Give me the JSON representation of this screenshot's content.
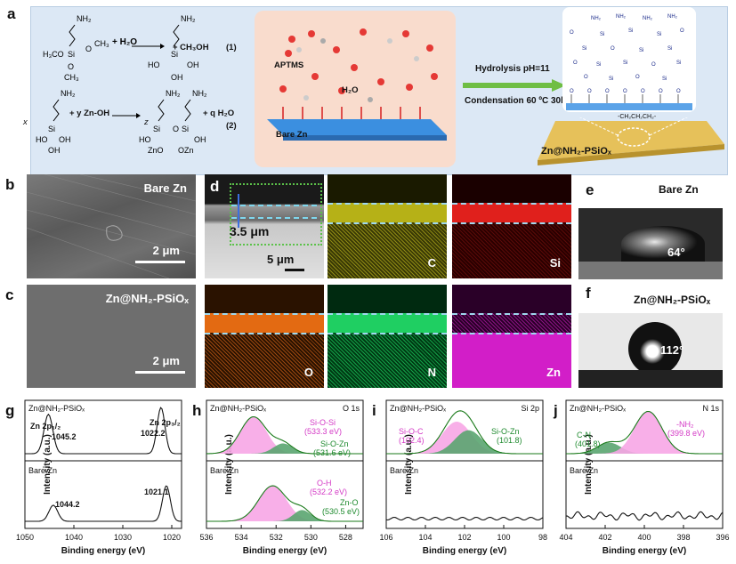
{
  "panel_a": {
    "label": "a",
    "eq1_label": "(1)",
    "eq2_label": "(2)",
    "eq1_products": "+ CH₃OH",
    "eq1_water": "+ H₂O",
    "eq2_coef_x": "x",
    "eq2_coef_y": "+ y Zn-OH",
    "eq2_coef_z": "z",
    "eq2_water": "+ q H₂O",
    "aptms": "APTMS",
    "h2o": "H₂O",
    "bare_zn": "Bare Zn",
    "arrow_top": "Hydrolysis pH=11",
    "arrow_bottom": "Condensation 60 ºC 30h",
    "chain": "-CH₂CH₂CH₂-",
    "product": "Zn@NH₂-PSiOₓ"
  },
  "panel_b": {
    "label": "b",
    "title": "Bare Zn",
    "scale": "2 μm"
  },
  "panel_c": {
    "label": "c",
    "title": "Zn@NH₂-PSiOₓ",
    "scale": "2 μm"
  },
  "panel_d": {
    "label": "d",
    "thickness": "3.5 μm",
    "scale": "5 μm",
    "maps": [
      "C",
      "Si",
      "O",
      "N",
      "Zn"
    ],
    "map_colors": {
      "C": "#d7d21c",
      "Si": "#e0201c",
      "O": "#e36a12",
      "N": "#1fcf62",
      "Zn": "#d21ec8"
    }
  },
  "panel_e": {
    "label": "e",
    "title": "Bare Zn",
    "angle": "64°"
  },
  "panel_f": {
    "label": "f",
    "title": "Zn@NH₂-PSiOₓ",
    "angle": "112°"
  },
  "xps": {
    "ylabel": "Intensity (a.u.)",
    "xlabel": "Binding energy (eV)",
    "g": {
      "label": "g",
      "top": "Zn@NH₂-PSiOₓ",
      "bottom": "Bare Zn",
      "p12": "Zn 2p₁/₂",
      "p32": "Zn 2p₃/₂",
      "top_peaks": [
        "1045.2",
        "1022.2"
      ],
      "bottom_peaks": [
        "1044.2",
        "1021.1"
      ],
      "ticks": [
        "1050",
        "1040",
        "1030",
        "1020"
      ]
    },
    "h": {
      "label": "h",
      "top": "Zn@NH₂-PSiOₓ",
      "bottom": "Bare Zn",
      "core": "O 1s",
      "t1": "Si-O-Si",
      "t1v": "(533.3 eV)",
      "t2": "Si-O-Zn",
      "t2v": "(531.6 eV)",
      "b1": "O-H",
      "b1v": "(532.2 eV)",
      "b2": "Zn-O",
      "b2v": "(530.5 eV)",
      "ticks": [
        "536",
        "534",
        "532",
        "530",
        "528"
      ]
    },
    "i": {
      "label": "i",
      "top": "Zn@NH₂-PSiOₓ",
      "bottom": "Bare Zn",
      "core": "Si 2p",
      "t1": "Si-O-C",
      "t1v": "(102.4)",
      "t2": "Si-O-Zn",
      "t2v": "(101.8)",
      "ticks": [
        "106",
        "104",
        "102",
        "100",
        "98"
      ]
    },
    "j": {
      "label": "j",
      "top": "Zn@NH₂-PSiOₓ",
      "bottom": "Bare Zn",
      "core": "N 1s",
      "t1": "C-N",
      "t1v": "(401.8)",
      "t2": "-NH₂",
      "t2v": "(399.8 eV)",
      "ticks": [
        "404",
        "402",
        "400",
        "398",
        "396"
      ]
    }
  },
  "colors": {
    "pink": "#f7a6e6",
    "green": "#5aa570",
    "magenta": "#d43ac6",
    "greentext": "#1e8a2e",
    "fit": "#1a7a1a"
  }
}
